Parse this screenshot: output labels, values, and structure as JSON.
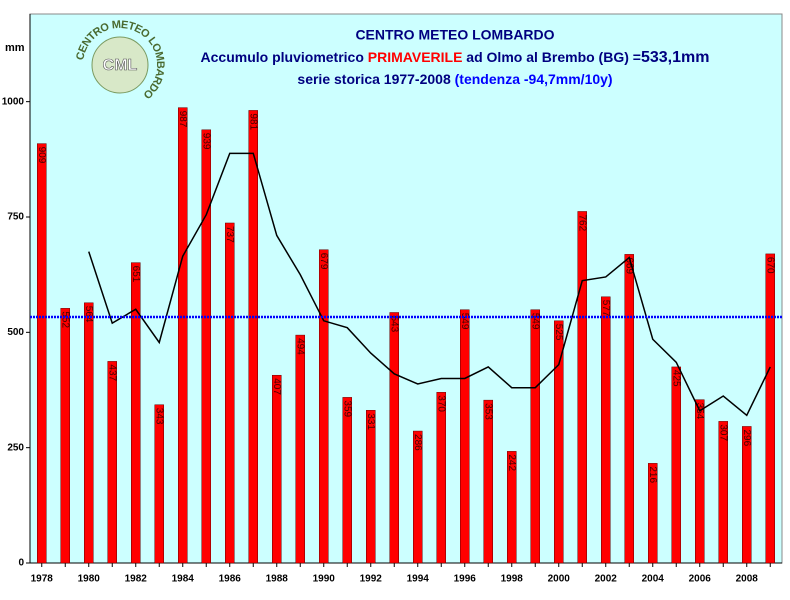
{
  "chart_data": {
    "type": "bar",
    "logo": {
      "ring_text": "CENTRO METEO LOMBARDO",
      "center_text": "CML"
    },
    "title": "CENTRO METEO LOMBARDO",
    "subtitle_parts": [
      {
        "text": "Accumulo pluviometrico ",
        "color": "#000080"
      },
      {
        "text": "PRIMAVERILE",
        "color": "#ff0000"
      },
      {
        "text": " ad Olmo al Brembo (BG) =",
        "color": "#000080"
      },
      {
        "text": "533,1mm",
        "color": "#000080"
      }
    ],
    "subtitle2_parts": [
      {
        "text": "serie storica 1977-2008 ",
        "color": "#000080"
      },
      {
        "text": "(tendenza -94,7mm/10y)",
        "color": "#0000ff"
      }
    ],
    "y_label": "mm",
    "categories": [
      "1978",
      null,
      "1980",
      null,
      "1982",
      null,
      "1984",
      null,
      "1986",
      null,
      "1988",
      null,
      "1990",
      null,
      "1992",
      null,
      "1994",
      null,
      "1996",
      null,
      "1998",
      null,
      "2000",
      null,
      "2002",
      null,
      "2004",
      null,
      "2006",
      null,
      "2008",
      null
    ],
    "values": [
      909,
      552,
      564,
      437,
      651,
      343,
      987,
      939,
      737,
      981,
      407,
      494,
      679,
      359,
      331,
      543,
      286,
      370,
      549,
      353,
      242,
      549,
      525,
      762,
      577,
      669,
      216,
      425,
      354,
      307,
      296,
      670
    ],
    "color": "#ff0000",
    "line": {
      "color": "#000000",
      "values": [
        null,
        null,
        675,
        520,
        550,
        478,
        665,
        755,
        888,
        888,
        710,
        625,
        525,
        510,
        455,
        410,
        388,
        400,
        400,
        425,
        380,
        380,
        430,
        612,
        620,
        662,
        485,
        435,
        330,
        362,
        320,
        425
      ]
    },
    "reference_line": {
      "value": 533.1,
      "color": "#0000ff"
    },
    "ylim": [
      0,
      1190
    ],
    "yticks": [
      0,
      250,
      500,
      750,
      1000
    ],
    "grid": false
  }
}
